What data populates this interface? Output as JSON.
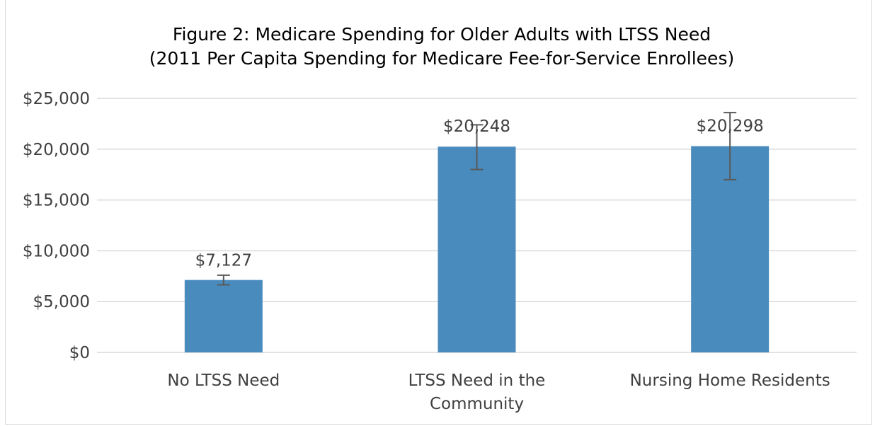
{
  "chart_data": {
    "type": "bar",
    "title": "Figure 2: Medicare Spending for Older Adults with LTSS Need",
    "subtitle": "(2011 Per Capita Spending for Medicare Fee-for-Service Enrollees)",
    "categories": [
      [
        "No LTSS Need"
      ],
      [
        "LTSS Need in the",
        "Community"
      ],
      [
        "Nursing Home Residents"
      ]
    ],
    "values": [
      7127,
      20248,
      20298
    ],
    "data_labels": [
      "$7,127",
      "$20,248",
      "$20,298"
    ],
    "error_bars": [
      [
        6650,
        7600
      ],
      [
        18000,
        22400
      ],
      [
        17000,
        23600
      ]
    ],
    "ylim": [
      0,
      25000
    ],
    "y_ticks": [
      0,
      5000,
      10000,
      15000,
      20000,
      25000
    ],
    "y_tick_labels": [
      "$0",
      "$5,000",
      "$10,000",
      "$15,000",
      "$20,000",
      "$25,000"
    ],
    "xlabel": "",
    "ylabel": "",
    "grid": true,
    "legend": "none",
    "colors": {
      "bar": "#4a8bbe",
      "grid": "#d9d9d9",
      "error": "#595959",
      "text": "#404040"
    }
  }
}
